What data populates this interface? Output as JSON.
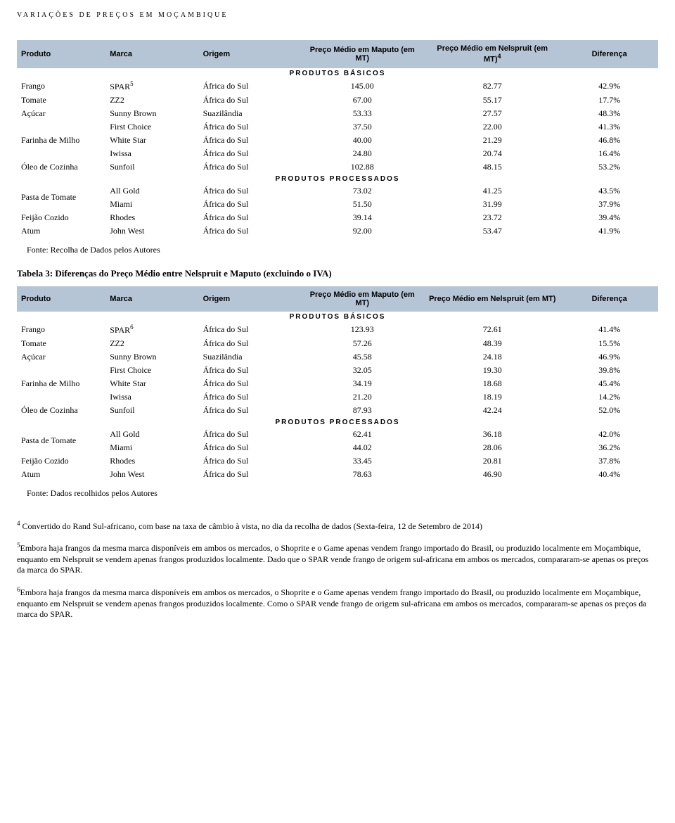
{
  "header": "VARIAÇÕES DE PREÇOS EM MOÇAMBIQUE",
  "table1": {
    "columns": {
      "produto": "Produto",
      "marca": "Marca",
      "origem": "Origem",
      "maputo": "Preço Médio em Maputo (em MT)",
      "nelspruit_html": "Preço Médio em Nelspruit (em MT)<sup>4</sup>",
      "diferenca": "Diferença"
    },
    "section_basicos": "PRODUTOS BÁSICOS",
    "section_processados": "PRODUTOS PROCESSADOS",
    "basicos": [
      {
        "produto": "Frango",
        "marca_html": "SPAR<sup>5</sup>",
        "origem": "África do Sul",
        "maputo": "145.00",
        "nelspruit": "82.77",
        "diff": "42.9%"
      },
      {
        "produto": "Tomate",
        "marca": "ZZ2",
        "origem": "África do Sul",
        "maputo": "67.00",
        "nelspruit": "55.17",
        "diff": "17.7%"
      },
      {
        "produto": "Açúcar",
        "marca": "Sunny Brown",
        "origem": "Suazilândia",
        "maputo": "53.33",
        "nelspruit": "27.57",
        "diff": "48.3%"
      },
      {
        "produto": "Farinha de Milho",
        "rowspan": 3,
        "marca": "First Choice",
        "origem": "África do Sul",
        "maputo": "37.50",
        "nelspruit": "22.00",
        "diff": "41.3%"
      },
      {
        "marca": "White Star",
        "origem": "África do Sul",
        "maputo": "40.00",
        "nelspruit": "21.29",
        "diff": "46.8%"
      },
      {
        "marca": "Iwissa",
        "origem": "África do Sul",
        "maputo": "24.80",
        "nelspruit": "20.74",
        "diff": "16.4%"
      },
      {
        "produto": "Óleo de Cozinha",
        "marca": "Sunfoil",
        "origem": "África do Sul",
        "maputo": "102.88",
        "nelspruit": "48.15",
        "diff": "53.2%"
      }
    ],
    "processados": [
      {
        "produto": "Pasta de Tomate",
        "rowspan": 2,
        "marca": "All Gold",
        "origem": "África do Sul",
        "maputo": "73.02",
        "nelspruit": "41.25",
        "diff": "43.5%"
      },
      {
        "marca": "Miami",
        "origem": "África do Sul",
        "maputo": "51.50",
        "nelspruit": "31.99",
        "diff": "37.9%"
      },
      {
        "produto": "Feijão Cozido",
        "marca": "Rhodes",
        "origem": "África do Sul",
        "maputo": "39.14",
        "nelspruit": "23.72",
        "diff": "39.4%"
      },
      {
        "produto": "Atum",
        "marca": "John West",
        "origem": "África do Sul",
        "maputo": "92.00",
        "nelspruit": "53.47",
        "diff": "41.9%"
      }
    ],
    "fonte": "Fonte: Recolha de Dados pelos Autores"
  },
  "table2_title": "Tabela 3: Diferenças do Preço Médio entre Nelspruit e Maputo (excluindo o IVA)",
  "table2": {
    "columns": {
      "produto": "Produto",
      "marca": "Marca",
      "origem": "Origem",
      "maputo": "Preço Médio em Maputo (em MT)",
      "nelspruit": "Preço Médio em Nelspruit (em MT)",
      "diferenca": "Diferença"
    },
    "section_basicos": "PRODUTOS BÁSICOS",
    "section_processados": "PRODUTOS PROCESSADOS",
    "basicos": [
      {
        "produto": "Frango",
        "marca_html": "SPAR<sup>6</sup>",
        "origem": "África do Sul",
        "maputo": "123.93",
        "nelspruit": "72.61",
        "diff": "41.4%"
      },
      {
        "produto": "Tomate",
        "marca": "ZZ2",
        "origem": "África do Sul",
        "maputo": "57.26",
        "nelspruit": "48.39",
        "diff": "15.5%"
      },
      {
        "produto": "Açúcar",
        "marca": "Sunny Brown",
        "origem": "Suazilândia",
        "maputo": "45.58",
        "nelspruit": "24.18",
        "diff": "46.9%"
      },
      {
        "produto": "Farinha de Milho",
        "rowspan": 3,
        "marca": "First Choice",
        "origem": "África do Sul",
        "maputo": "32.05",
        "nelspruit": "19.30",
        "diff": "39.8%"
      },
      {
        "marca": "White Star",
        "origem": "África do Sul",
        "maputo": "34.19",
        "nelspruit": "18.68",
        "diff": "45.4%"
      },
      {
        "marca": "Iwissa",
        "origem": "África do Sul",
        "maputo": "21.20",
        "nelspruit": "18.19",
        "diff": "14.2%"
      },
      {
        "produto": "Óleo de Cozinha",
        "marca": "Sunfoil",
        "origem": "África do Sul",
        "maputo": "87.93",
        "nelspruit": "42.24",
        "diff": "52.0%"
      }
    ],
    "processados": [
      {
        "produto": "Pasta de Tomate",
        "rowspan": 2,
        "marca": "All Gold",
        "origem": "África do Sul",
        "maputo": "62.41",
        "nelspruit": "36.18",
        "diff": "42.0%"
      },
      {
        "marca": "Miami",
        "origem": "África do Sul",
        "maputo": "44.02",
        "nelspruit": "28.06",
        "diff": "36.2%"
      },
      {
        "produto": "Feijão Cozido",
        "marca": "Rhodes",
        "origem": "África do Sul",
        "maputo": "33.45",
        "nelspruit": "20.81",
        "diff": "37.8%"
      },
      {
        "produto": "Atum",
        "marca": "John West",
        "origem": "África do Sul",
        "maputo": "78.63",
        "nelspruit": "46.90",
        "diff": "40.4%"
      }
    ],
    "fonte": "Fonte: Dados recolhidos pelos Autores"
  },
  "footnotes": [
    "<sup>4</sup> Convertido do Rand Sul-africano, com base na taxa de câmbio à vista, no dia da recolha de dados (Sexta-feira, 12 de Setembro de 2014)",
    "<sup>5</sup>Embora haja frangos da mesma marca disponíveis em ambos os mercados, o Shoprite e o Game apenas vendem frango importado do Brasil, ou produzido localmente em Moçambique, enquanto em Nelspruit se vendem apenas frangos produzidos localmente. Dado que o SPAR vende frango de origem sul-africana em ambos os mercados, compararam-se apenas os preços da marca do SPAR.",
    "<sup>6</sup>Embora haja frangos da mesma marca disponíveis em ambos os mercados, o Shoprite e o Game apenas vendem frango importado do Brasil, ou produzido localmente em Moçambique, enquanto em Nelspruit se vendem apenas frangos produzidos localmente. Como o SPAR vende frango de origem sul-africana em ambos os mercados, compararam-se apenas os preços da marca do SPAR."
  ]
}
